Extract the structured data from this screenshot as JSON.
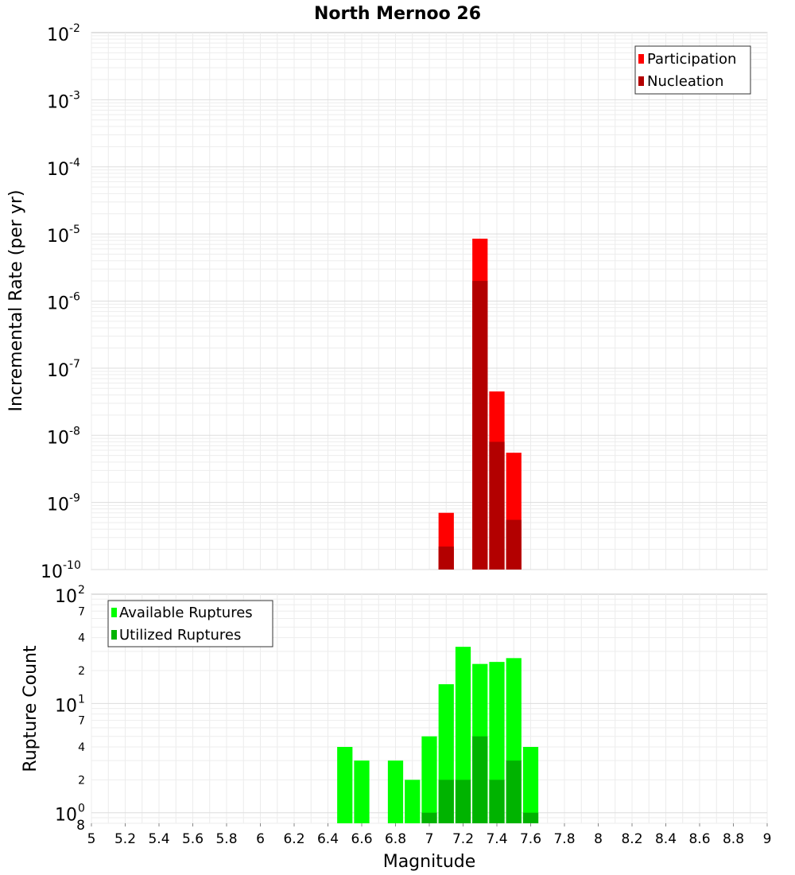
{
  "chart_data": [
    {
      "type": "bar",
      "title": "North Mernoo 26",
      "xlabel": "Magnitude",
      "ylabel": "Incremental Rate (per yr)",
      "yscale": "log",
      "ylim_exponents": [
        -10,
        -2
      ],
      "xlim": [
        5,
        9
      ],
      "bin_width": 0.1,
      "legend_position": "top-right",
      "colors": {
        "Participation": "#ff0000",
        "Nucleation": "#b30000"
      },
      "x": [
        7.1,
        7.3,
        7.4,
        7.5
      ],
      "series": [
        {
          "name": "Participation",
          "values": [
            7e-10,
            8.5e-06,
            4.5e-08,
            5.5e-09
          ]
        },
        {
          "name": "Nucleation",
          "values": [
            2.2e-10,
            2e-06,
            8e-09,
            5.5e-10
          ]
        }
      ]
    },
    {
      "type": "bar",
      "title": "",
      "xlabel": "Magnitude",
      "ylabel": "Rupture Count",
      "yscale": "log",
      "ylim": [
        0.8,
        100
      ],
      "xlim": [
        5,
        9
      ],
      "bin_width": 0.1,
      "legend_position": "top-left",
      "colors": {
        "Available Ruptures": "#00ff00",
        "Utilized Ruptures": "#00b300"
      },
      "x": [
        6.5,
        6.6,
        6.8,
        6.9,
        7.0,
        7.1,
        7.2,
        7.3,
        7.4,
        7.5,
        7.6
      ],
      "series": [
        {
          "name": "Available Ruptures",
          "values": [
            4,
            3,
            3,
            2,
            5,
            15,
            33,
            23,
            24,
            26,
            4
          ]
        },
        {
          "name": "Utilized Ruptures",
          "values": [
            0,
            0,
            0,
            0,
            1,
            2,
            2,
            5,
            2,
            3,
            1
          ]
        }
      ]
    }
  ],
  "x_tick_labels": [
    "5",
    "5.2",
    "5.4",
    "5.6",
    "5.8",
    "6",
    "6.2",
    "6.4",
    "6.6",
    "6.8",
    "7",
    "7.2",
    "7.4",
    "7.6",
    "7.8",
    "8",
    "8.2",
    "8.4",
    "8.6",
    "8.8",
    "9"
  ],
  "top_y_ticks": [
    {
      "base": "10",
      "exp": "-2"
    },
    {
      "base": "10",
      "exp": "-3"
    },
    {
      "base": "10",
      "exp": "-4"
    },
    {
      "base": "10",
      "exp": "-5"
    },
    {
      "base": "10",
      "exp": "-6"
    },
    {
      "base": "10",
      "exp": "-7"
    },
    {
      "base": "10",
      "exp": "-8"
    },
    {
      "base": "10",
      "exp": "-9"
    },
    {
      "base": "10",
      "exp": "-10"
    }
  ],
  "bottom_y_ticks": {
    "majors": [
      {
        "base": "10",
        "exp": "2"
      },
      {
        "base": "10",
        "exp": "1"
      },
      {
        "base": "10",
        "exp": "0"
      }
    ],
    "minors": [
      "7",
      "4",
      "2",
      "7",
      "4",
      "2",
      "8"
    ]
  }
}
